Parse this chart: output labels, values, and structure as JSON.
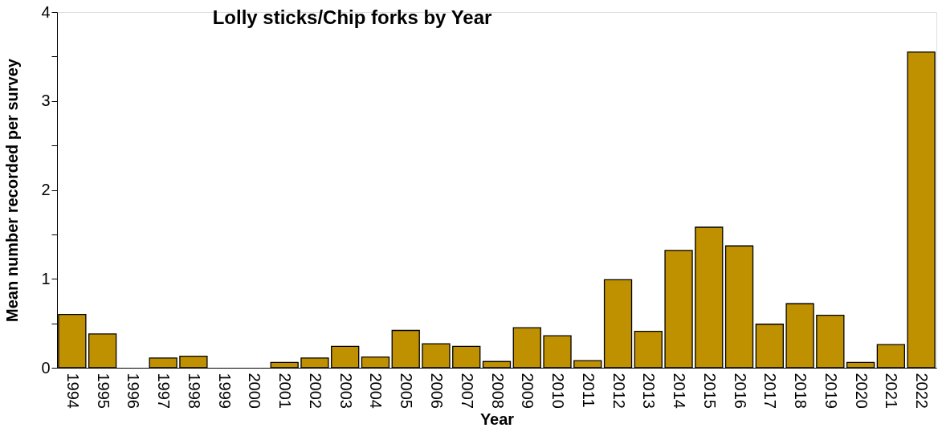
{
  "chart_data": {
    "type": "bar",
    "title": "Lolly sticks/Chip forks by Year",
    "xlabel": "Year",
    "ylabel": "Mean number recorded per survey",
    "categories": [
      "1994",
      "1995",
      "1996",
      "1997",
      "1998",
      "1999",
      "2000",
      "2001",
      "2002",
      "2003",
      "2004",
      "2005",
      "2006",
      "2007",
      "2008",
      "2009",
      "2010",
      "2011",
      "2012",
      "2013",
      "2014",
      "2015",
      "2016",
      "2017",
      "2018",
      "2019",
      "2020",
      "2021",
      "2022"
    ],
    "values": [
      0.6,
      0.38,
      0,
      0.11,
      0.13,
      0,
      0,
      0.06,
      0.11,
      0.24,
      0.12,
      0.42,
      0.27,
      0.24,
      0.07,
      0.45,
      0.36,
      0.08,
      0.99,
      0.41,
      1.32,
      1.58,
      1.37,
      0.49,
      0.72,
      0.59,
      0.06,
      0.26,
      3.55
    ],
    "color": "#bf9000",
    "ylim": [
      0,
      4
    ],
    "yticks": [
      0,
      {
        "value": 0.5,
        "label": null
      },
      1,
      {
        "value": 1.5,
        "label": null
      },
      2,
      {
        "value": 2.5,
        "label": null
      },
      3,
      {
        "value": 3.5,
        "label": null
      },
      4
    ],
    "grid": false
  }
}
